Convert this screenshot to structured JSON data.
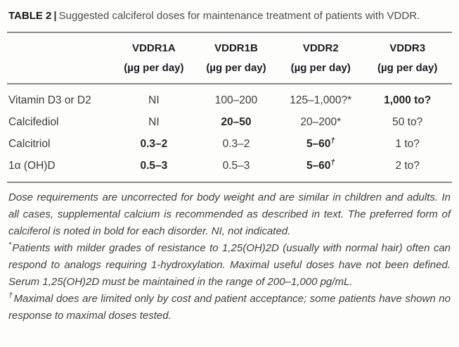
{
  "colors": {
    "text": "#3b3b3b",
    "heading": "#1c1c22",
    "rule": "#8a8a8a",
    "background": "#fdfdfc"
  },
  "title": {
    "label": "TABLE 2",
    "separator": "|",
    "text": "Suggested calciferol doses for maintenance treatment of patients with VDDR."
  },
  "table": {
    "columns": [
      {
        "name": "VDDR1A",
        "unit": "(µg per day)"
      },
      {
        "name": "VDDR1B",
        "unit": "(µg per day)"
      },
      {
        "name": "VDDR2",
        "unit": "(µg per day)"
      },
      {
        "name": "VDDR3",
        "unit": "(µg per day)"
      }
    ],
    "rows": [
      {
        "label": "Vitamin D3 or D2",
        "cells": [
          {
            "text": "NI",
            "bold": false
          },
          {
            "text": "100–200",
            "bold": false
          },
          {
            "text": "125–1,000?*",
            "bold": false
          },
          {
            "text": "1,000 to?",
            "bold": true
          }
        ]
      },
      {
        "label": "Calcifediol",
        "cells": [
          {
            "text": "NI",
            "bold": false
          },
          {
            "text": "20–50",
            "bold": true
          },
          {
            "text": "20–200*",
            "bold": false
          },
          {
            "text": "50 to?",
            "bold": false
          }
        ]
      },
      {
        "label": "Calcitriol",
        "cells": [
          {
            "text": "0.3–2",
            "bold": true
          },
          {
            "text": "0.3–2",
            "bold": false
          },
          {
            "text": "5–60",
            "sup": "†",
            "bold": true
          },
          {
            "text": "1 to?",
            "bold": false
          }
        ]
      },
      {
        "label": "1α (OH)D",
        "cells": [
          {
            "text": "0.5–3",
            "bold": true
          },
          {
            "text": "0.5–3",
            "bold": false
          },
          {
            "text": "5–60",
            "sup": "†",
            "bold": true
          },
          {
            "text": "2 to?",
            "bold": false
          }
        ]
      }
    ]
  },
  "footnotes": [
    {
      "marker": "",
      "text": "Dose requirements are uncorrected for body weight and are similar in children and adults. In all cases, supplemental calcium is recommended as described in text. The preferred form of calciferol is noted in bold for each disorder. NI, not indicated."
    },
    {
      "marker": "*",
      "text": "Patients with milder grades of resistance to 1,25(OH)2D (usually with normal hair) often can respond to analogs requiring 1-hydroxylation. Maximal useful doses have not been defined. Serum 1,25(OH)2D must be maintained in the range of 200–1,000 pg/mL."
    },
    {
      "marker": "†",
      "text": "Maximal does are limited only by cost and patient acceptance; some patients have shown no response to maximal doses tested."
    }
  ]
}
